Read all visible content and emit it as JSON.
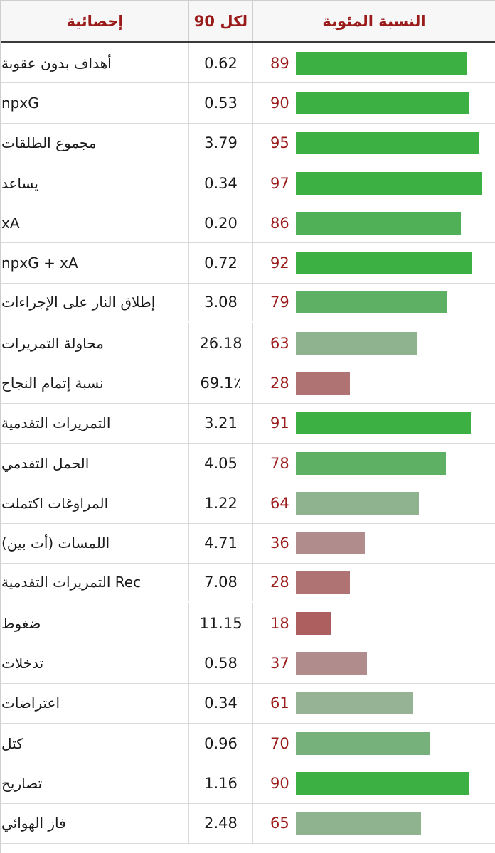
{
  "header": {
    "stat_label": "إحصائية",
    "per90_label": "لكل 90",
    "percentile_label": "النسبة المئوية"
  },
  "rows": [
    {
      "stat": "أهداف بدون عقوبة",
      "per90": "0.62",
      "percentile": 89,
      "color": "#3cb043"
    },
    {
      "stat": "npxG",
      "per90": "0.53",
      "percentile": 90,
      "color": "#3cb043"
    },
    {
      "stat": "مجموع الطلقات",
      "per90": "3.79",
      "percentile": 95,
      "color": "#3cb043"
    },
    {
      "stat": "يساعد",
      "per90": "0.34",
      "percentile": 97,
      "color": "#3cb043"
    },
    {
      "stat": "xA",
      "per90": "0.20",
      "percentile": 86,
      "color": "#4fb057"
    },
    {
      "stat": "npxG + xA",
      "per90": "0.72",
      "percentile": 92,
      "color": "#3cb043"
    },
    {
      "stat": "إطلاق النار على الإجراءات",
      "per90": "3.08",
      "percentile": 79,
      "color": "#5eb064"
    },
    {
      "stat": "محاولة التمريرات",
      "per90": "26.18",
      "percentile": 63,
      "color": "#8fb38f"
    },
    {
      "stat": "نسبة إتمام النجاح",
      "per90": "69.1٪",
      "percentile": 28,
      "color": "#b07373"
    },
    {
      "stat": "التمريرات التقدمية",
      "per90": "3.21",
      "percentile": 91,
      "color": "#3cb043"
    },
    {
      "stat": "الحمل التقدمي",
      "per90": "4.05",
      "percentile": 78,
      "color": "#5eb064"
    },
    {
      "stat": "المراوغات اكتملت",
      "per90": "1.22",
      "percentile": 64,
      "color": "#8fb38f"
    },
    {
      "stat": "اللمسات (أت بين)",
      "per90": "4.71",
      "percentile": 36,
      "color": "#b08c8c"
    },
    {
      "stat": "Rec التمريرات التقدمية",
      "per90": "7.08",
      "percentile": 28,
      "color": "#b07373"
    },
    {
      "stat": "ضغوط",
      "per90": "11.15",
      "percentile": 18,
      "color": "#ad5e5e"
    },
    {
      "stat": "تدخلات",
      "per90": "0.58",
      "percentile": 37,
      "color": "#b08c8c"
    },
    {
      "stat": "اعتراضات",
      "per90": "0.34",
      "percentile": 61,
      "color": "#96b396"
    },
    {
      "stat": "كتل",
      "per90": "0.96",
      "percentile": 70,
      "color": "#76b07a"
    },
    {
      "stat": "تصاريح",
      "per90": "1.16",
      "percentile": 90,
      "color": "#3cb043"
    },
    {
      "stat": "فاز الهوائي",
      "per90": "2.48",
      "percentile": 65,
      "color": "#8fb38f"
    }
  ]
}
